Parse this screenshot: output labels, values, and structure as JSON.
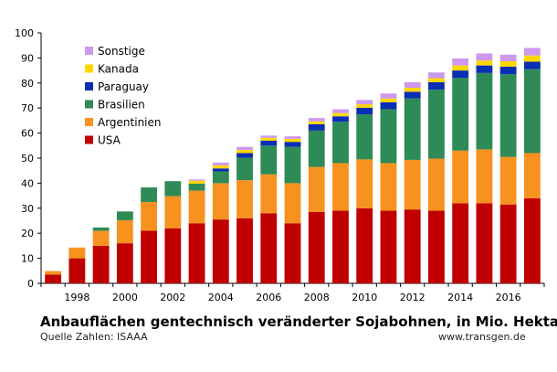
{
  "chart_data": {
    "type": "bar",
    "stacked": true,
    "title": "Anbauflächen gentechnisch veränderter Sojabohnen, in Mio. Hektar",
    "source": "Quelle Zahlen: ISAAA",
    "website": "www.transgen.de",
    "categories": [
      "1997",
      "1998",
      "1999",
      "2000",
      "2001",
      "2002",
      "2003",
      "2004",
      "2005",
      "2006",
      "2007",
      "2008",
      "2009",
      "2010",
      "2011",
      "2012",
      "2013",
      "2014",
      "2015",
      "2016",
      "2017"
    ],
    "x_tick_labels": [
      "1998",
      "2000",
      "2002",
      "2004",
      "2006",
      "2008",
      "2010",
      "2012",
      "2014",
      "2016"
    ],
    "y_ticks": [
      0,
      10,
      20,
      30,
      40,
      50,
      60,
      70,
      80,
      90,
      100
    ],
    "ylim": [
      0,
      100
    ],
    "grid": false,
    "legend_position": "top-left",
    "series": [
      {
        "name": "USA",
        "color": "#c00000",
        "values": [
          3.5,
          10,
          15,
          16,
          21,
          22,
          24,
          25.5,
          26,
          28,
          24,
          28.5,
          29,
          30,
          29,
          29.5,
          29,
          32,
          32,
          31.5,
          34
        ]
      },
      {
        "name": "Argentinien",
        "color": "#f79220",
        "values": [
          1.4,
          4.3,
          6,
          9.2,
          11.5,
          12.8,
          13,
          14.5,
          15.2,
          15.5,
          16,
          18,
          19,
          19.5,
          19,
          19.8,
          20.8,
          21,
          21.5,
          19,
          18
        ]
      },
      {
        "name": "Brasilien",
        "color": "#2e8b57",
        "values": [
          0,
          0,
          1.3,
          3.5,
          5.8,
          6,
          2.8,
          4.7,
          9,
          11.5,
          14.5,
          14.5,
          16.5,
          18,
          21.5,
          24.5,
          27.5,
          29,
          30.5,
          33,
          33.5
        ]
      },
      {
        "name": "Paraguay",
        "color": "#0b2fb2",
        "values": [
          0,
          0,
          0,
          0,
          0,
          0,
          0,
          1.2,
          1.8,
          2,
          2,
          2.5,
          2.2,
          2.6,
          2.8,
          2.7,
          3,
          3,
          3,
          3,
          3
        ]
      },
      {
        "name": "Kanada",
        "color": "#ffd700",
        "values": [
          0,
          0,
          0,
          0,
          0,
          0,
          1.2,
          1.2,
          1.3,
          1.1,
          1.2,
          1.2,
          1.3,
          1.4,
          1.5,
          1.6,
          1.6,
          2,
          2,
          2.2,
          2.5
        ]
      },
      {
        "name": "Sonstige",
        "color": "#cc99ee",
        "values": [
          0,
          0,
          0,
          0,
          0,
          0,
          0.5,
          1.1,
          1.2,
          0.9,
          1,
          1.3,
          1.5,
          1.7,
          2,
          2.2,
          2.3,
          2.8,
          2.8,
          2.6,
          3
        ]
      }
    ]
  }
}
